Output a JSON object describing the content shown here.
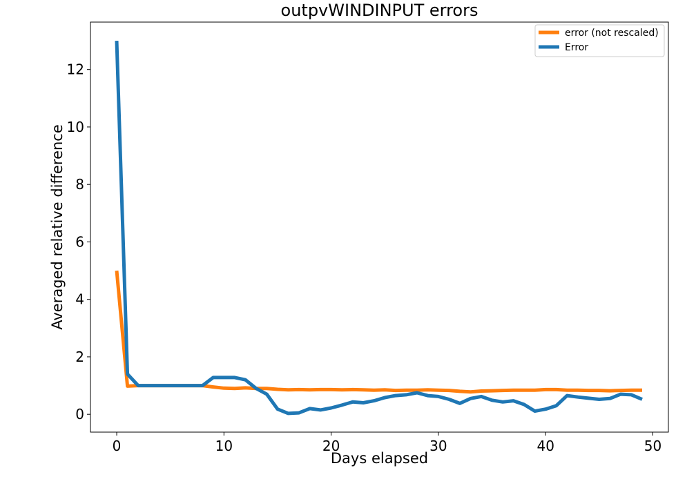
{
  "chart_data": {
    "type": "line",
    "title": "outpvWINDINPUT errors",
    "xlabel": "Days elapsed",
    "ylabel": "Averaged relative difference",
    "xlim": [
      -2.45,
      51.45
    ],
    "ylim": [
      -0.62,
      13.65
    ],
    "xticks": [
      0,
      10,
      20,
      30,
      40,
      50
    ],
    "yticks": [
      0,
      2,
      4,
      6,
      8,
      10,
      12
    ],
    "grid": false,
    "legend_position": "upper right",
    "x": [
      0,
      1,
      2,
      3,
      4,
      5,
      6,
      7,
      8,
      9,
      10,
      11,
      12,
      13,
      14,
      15,
      16,
      17,
      18,
      19,
      20,
      21,
      22,
      23,
      24,
      25,
      26,
      27,
      28,
      29,
      30,
      31,
      32,
      33,
      34,
      35,
      36,
      37,
      38,
      39,
      40,
      41,
      42,
      43,
      44,
      45,
      46,
      47,
      48,
      49
    ],
    "series": [
      {
        "name": "error (not rescaled)",
        "color": "#ff7f0e",
        "values": [
          5.0,
          0.98,
          1.0,
          1.0,
          1.0,
          1.0,
          1.0,
          1.0,
          1.0,
          0.95,
          0.91,
          0.9,
          0.92,
          0.9,
          0.9,
          0.87,
          0.85,
          0.86,
          0.85,
          0.86,
          0.86,
          0.85,
          0.86,
          0.85,
          0.84,
          0.85,
          0.83,
          0.84,
          0.84,
          0.85,
          0.84,
          0.83,
          0.8,
          0.78,
          0.81,
          0.82,
          0.83,
          0.84,
          0.84,
          0.84,
          0.86,
          0.86,
          0.84,
          0.84,
          0.83,
          0.83,
          0.82,
          0.83,
          0.84,
          0.84
        ]
      },
      {
        "name": "Error",
        "color": "#1f77b4",
        "values": [
          13.0,
          1.4,
          1.0,
          1.0,
          1.0,
          1.0,
          1.0,
          1.0,
          1.0,
          1.28,
          1.28,
          1.28,
          1.2,
          0.9,
          0.7,
          0.18,
          0.03,
          0.05,
          0.2,
          0.15,
          0.22,
          0.32,
          0.43,
          0.4,
          0.47,
          0.58,
          0.65,
          0.68,
          0.75,
          0.65,
          0.62,
          0.52,
          0.38,
          0.55,
          0.62,
          0.49,
          0.43,
          0.47,
          0.34,
          0.11,
          0.18,
          0.3,
          0.65,
          0.6,
          0.56,
          0.52,
          0.55,
          0.7,
          0.68,
          0.52
        ]
      }
    ]
  }
}
